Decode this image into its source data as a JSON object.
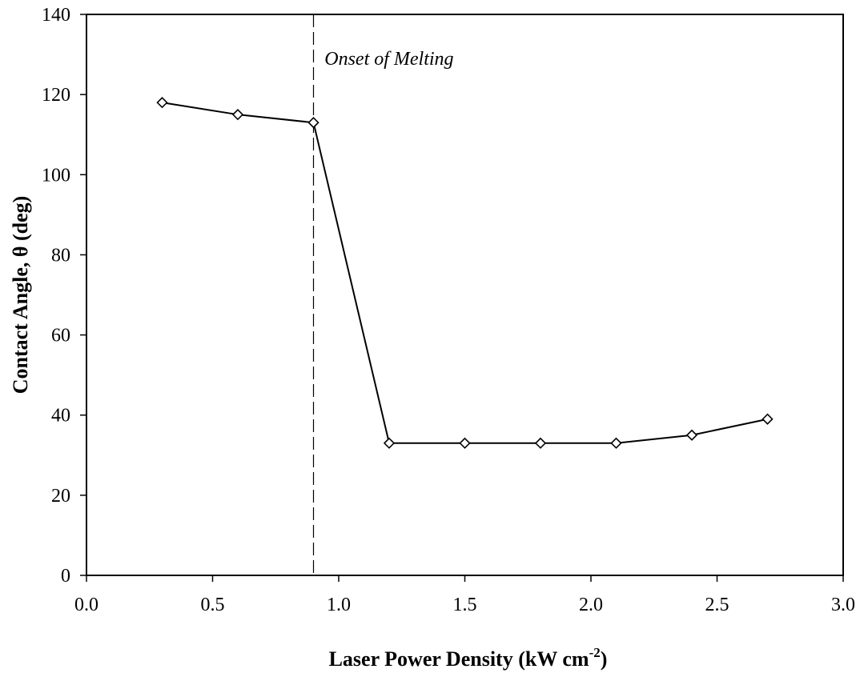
{
  "chart_data": {
    "type": "line",
    "xlabel": "Laser Power Density (kW cm",
    "xlabel_sup": "-2",
    "xlabel_end": ")",
    "ylabel": "Contact Angle, θ (deg)",
    "xlim": [
      0.0,
      3.0
    ],
    "ylim": [
      0,
      140
    ],
    "xticks": [
      0.0,
      0.5,
      1.0,
      1.5,
      2.0,
      2.5,
      3.0
    ],
    "xtick_labels": [
      "0.0",
      "0.5",
      "1.0",
      "1.5",
      "2.0",
      "2.5",
      "3.0"
    ],
    "yticks": [
      0,
      20,
      40,
      60,
      80,
      100,
      120,
      140
    ],
    "ytick_labels": [
      "0",
      "20",
      "40",
      "60",
      "80",
      "100",
      "120",
      "140"
    ],
    "grid": false,
    "series": [
      {
        "marker": "diamond-open",
        "color": "#000000",
        "x": [
          0.3,
          0.6,
          0.9,
          1.2,
          1.5,
          1.8,
          2.1,
          2.4,
          2.7
        ],
        "y": [
          118,
          115,
          113,
          33,
          33,
          33,
          33,
          35,
          39
        ]
      }
    ],
    "reference_line": {
      "orientation": "vertical",
      "x": 0.9,
      "style": "dashed"
    },
    "annotation": {
      "text": "Onset of Melting",
      "x": 0.95,
      "y": 129
    }
  }
}
